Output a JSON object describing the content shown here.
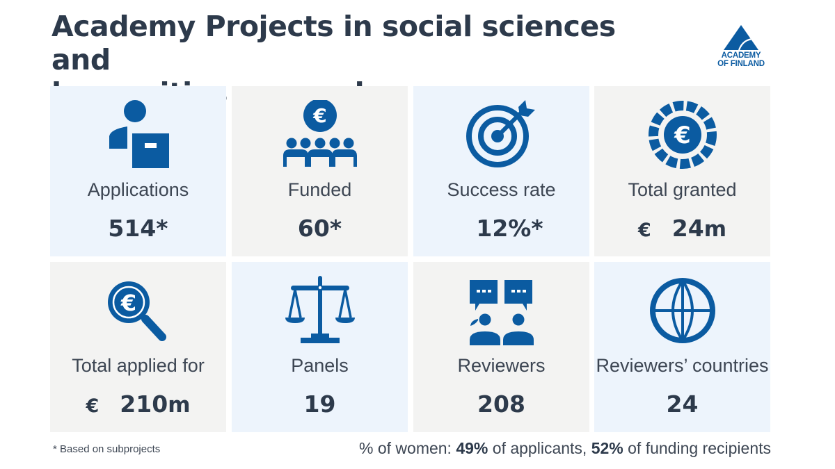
{
  "title": {
    "line1": "Academy Projects in social sciences and",
    "line2": "humanities research"
  },
  "logo": {
    "line1": "ACADEMY",
    "line2": "OF FINLAND",
    "icon": "triangle-logo-icon"
  },
  "colors": {
    "accent": "#0b5ba1",
    "text": "#2d3a4b",
    "tile_blue": "#edf4fc",
    "tile_grey": "#f3f3f2"
  },
  "tiles": [
    {
      "icon": "applicant-icon",
      "label": "Applications",
      "value": "514*"
    },
    {
      "icon": "funded-group-icon",
      "label": "Funded",
      "value": "60*"
    },
    {
      "icon": "target-icon",
      "label": "Success rate",
      "value": "12%*"
    },
    {
      "icon": "euro-coin-icon",
      "label": "Total granted",
      "currency": "€",
      "value": "24",
      "unit": "m"
    },
    {
      "icon": "euro-search-icon",
      "label": "Total applied for",
      "currency": "€",
      "value": "210",
      "unit": "m"
    },
    {
      "icon": "scales-icon",
      "label": "Panels",
      "value": "19"
    },
    {
      "icon": "reviewers-icon",
      "label": "Reviewers",
      "value": "208"
    },
    {
      "icon": "globe-icon",
      "label": "Reviewers’ countries",
      "value": "24"
    }
  ],
  "footer": {
    "note": "* Based on subprojects",
    "women_prefix": "% of women: ",
    "women_applicants_pct": "49%",
    "women_applicants_text": " of applicants, ",
    "women_recipients_pct": "52%",
    "women_recipients_text": " of funding recipients"
  }
}
